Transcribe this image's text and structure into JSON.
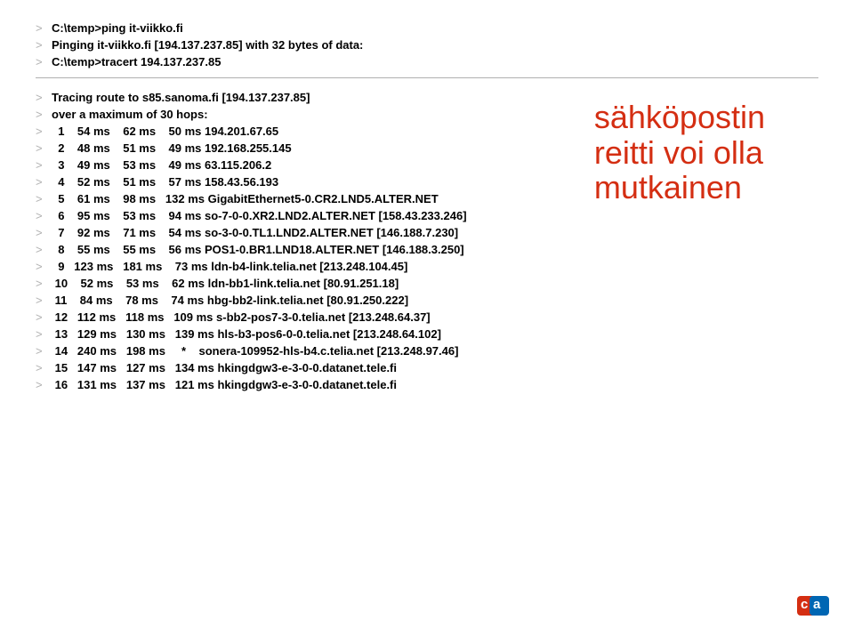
{
  "header_lines": [
    "C:\\temp>ping it-viikko.fi",
    "Pinging it-viikko.fi [194.137.237.85] with 32 bytes of data:",
    "C:\\temp>tracert 194.137.237.85"
  ],
  "trace_lines": [
    "Tracing route to s85.sanoma.fi [194.137.237.85]",
    "over a maximum of 30 hops:",
    "  1    54 ms    62 ms    50 ms 194.201.67.65",
    "  2    48 ms    51 ms    49 ms 192.168.255.145",
    "  3    49 ms    53 ms    49 ms 63.115.206.2",
    "  4    52 ms    51 ms    57 ms 158.43.56.193",
    "  5    61 ms    98 ms   132 ms GigabitEthernet5-0.CR2.LND5.ALTER.NET",
    "  6    95 ms    53 ms    94 ms so-7-0-0.XR2.LND2.ALTER.NET [158.43.233.246]",
    "  7    92 ms    71 ms    54 ms so-3-0-0.TL1.LND2.ALTER.NET [146.188.7.230]",
    "  8    55 ms    55 ms    56 ms POS1-0.BR1.LND18.ALTER.NET [146.188.3.250]",
    "  9   123 ms   181 ms    73 ms ldn-b4-link.telia.net [213.248.104.45]",
    " 10    52 ms    53 ms    62 ms ldn-bb1-link.telia.net [80.91.251.18]",
    " 11    84 ms    78 ms    74 ms hbg-bb2-link.telia.net [80.91.250.222]",
    " 12   112 ms   118 ms   109 ms s-bb2-pos7-3-0.telia.net [213.248.64.37]",
    " 13   129 ms   130 ms   139 ms hls-b3-pos6-0-0.telia.net [213.248.64.102]",
    " 14   240 ms   198 ms     *    sonera-109952-hls-b4.c.telia.net [213.248.97.46]",
    " 15   147 ms   127 ms   134 ms hkingdgw3-e-3-0-0.datanet.tele.fi",
    " 16   131 ms   137 ms   121 ms hkingdgw3-e-3-0-0.datanet.tele.fi"
  ],
  "overlay": {
    "line1": "sähköpostin",
    "line2": "reitti voi olla",
    "line3": "mutkainen",
    "color": "#d42e12",
    "fontsize": 36
  },
  "prompt_char": ">",
  "colors": {
    "prompt": "#b0b0b0",
    "text": "#000000",
    "background": "#ffffff",
    "overlay": "#d42e12",
    "logo_red": "#d42e12",
    "logo_blue": "#0066b3",
    "separator": "#b0b0b0"
  }
}
